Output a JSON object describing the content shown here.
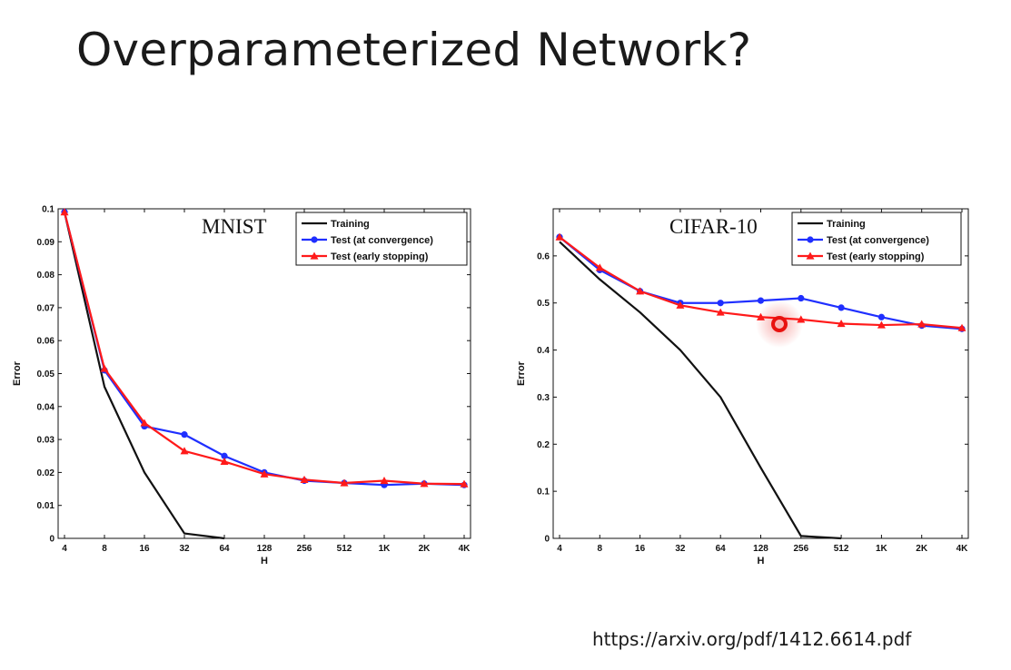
{
  "slide": {
    "title": "Overparameterized Network?",
    "source_url": "https://arxiv.org/pdf/1412.6614.pdf"
  },
  "colors": {
    "training": "#111111",
    "test_convergence": "#1f2fff",
    "test_early": "#ff1a1a",
    "cursor": "#e8120f"
  },
  "chart_data": [
    {
      "type": "line",
      "title": "MNIST",
      "xlabel": "H",
      "ylabel": "Error",
      "categories": [
        "4",
        "8",
        "16",
        "32",
        "64",
        "128",
        "256",
        "512",
        "1K",
        "2K",
        "4K"
      ],
      "ylim": [
        0,
        0.1
      ],
      "yticks": [
        0,
        0.01,
        0.02,
        0.03,
        0.04,
        0.05,
        0.06,
        0.07,
        0.08,
        0.09,
        0.1
      ],
      "ytick_labels": [
        "0",
        "0.01",
        "0.02",
        "0.03",
        "0.04",
        "0.05",
        "0.06",
        "0.07",
        "0.08",
        "0.09",
        "0.1"
      ],
      "legend_position": "top-right",
      "grid": false,
      "series": [
        {
          "name": "Training",
          "marker": "none",
          "color_key": "training",
          "values": [
            0.099,
            0.046,
            0.02,
            0.0015,
            0.0,
            null,
            null,
            null,
            null,
            null,
            null
          ]
        },
        {
          "name": "Test (at convergence)",
          "marker": "circle",
          "color_key": "test_convergence",
          "values": [
            0.099,
            0.051,
            0.034,
            0.0315,
            0.025,
            0.02,
            0.0175,
            0.0168,
            0.0162,
            0.0166,
            0.0162
          ]
        },
        {
          "name": "Test (early stopping)",
          "marker": "triangle",
          "color_key": "test_early",
          "values": [
            0.099,
            0.0515,
            0.035,
            0.0265,
            0.0233,
            0.0195,
            0.0178,
            0.0168,
            0.0175,
            0.0166,
            0.0165
          ]
        }
      ]
    },
    {
      "type": "line",
      "title": "CIFAR-10",
      "xlabel": "H",
      "ylabel": "Error",
      "categories": [
        "4",
        "8",
        "16",
        "32",
        "64",
        "128",
        "256",
        "512",
        "1K",
        "2K",
        "4K"
      ],
      "ylim": [
        0,
        0.7
      ],
      "yticks": [
        0,
        0.1,
        0.2,
        0.3,
        0.4,
        0.5,
        0.6
      ],
      "ytick_labels": [
        "0",
        "0.1",
        "0.2",
        "0.3",
        "0.4",
        "0.5",
        "0.6"
      ],
      "legend_position": "top-right",
      "grid": false,
      "series": [
        {
          "name": "Training",
          "marker": "none",
          "color_key": "training",
          "values": [
            0.63,
            0.55,
            0.48,
            0.4,
            0.3,
            0.15,
            0.005,
            0.0,
            null,
            null,
            null
          ]
        },
        {
          "name": "Test (at convergence)",
          "marker": "circle",
          "color_key": "test_convergence",
          "values": [
            0.64,
            0.57,
            0.525,
            0.5,
            0.5,
            0.505,
            0.51,
            0.49,
            0.47,
            0.452,
            0.445
          ]
        },
        {
          "name": "Test (early stopping)",
          "marker": "triangle",
          "color_key": "test_early",
          "values": [
            0.64,
            0.575,
            0.525,
            0.495,
            0.48,
            0.47,
            0.465,
            0.456,
            0.453,
            0.455,
            0.447
          ]
        }
      ]
    }
  ]
}
